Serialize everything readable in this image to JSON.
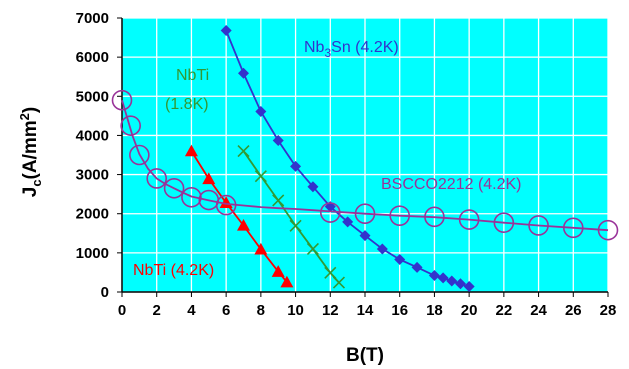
{
  "chart_data": {
    "type": "line",
    "xlabel": "B(T)",
    "ylabel": {
      "main": "J",
      "sub": "c",
      "unit_pre": "(A/mm",
      "unit_sup": "2",
      "unit_post": ")"
    },
    "xlim": [
      0,
      28
    ],
    "ylim": [
      0,
      7000
    ],
    "x_ticks": [
      0,
      2,
      4,
      6,
      8,
      10,
      12,
      14,
      16,
      18,
      20,
      22,
      24,
      26,
      28
    ],
    "y_ticks": [
      0,
      1000,
      2000,
      3000,
      4000,
      5000,
      6000,
      7000
    ],
    "grid": true,
    "plot_background": "#00ffff",
    "grid_color": "#ffffff",
    "series": [
      {
        "name": "Nb3Sn (4.2K)",
        "label_parts": {
          "pre": "Nb",
          "sub": "3",
          "post": "Sn (4.2K)"
        },
        "color": "#3333cc",
        "marker": "diamond",
        "x": [
          6,
          7,
          8,
          9,
          10,
          11,
          12,
          13,
          14,
          15,
          16,
          17,
          18,
          18.5,
          19,
          19.5,
          20
        ],
        "y": [
          6680,
          5590,
          4610,
          3870,
          3210,
          2690,
          2180,
          1790,
          1440,
          1100,
          830,
          630,
          420,
          360,
          280,
          210,
          140
        ]
      },
      {
        "name": "NbTi (1.8K)",
        "label_parts": {
          "line1": "NbTi",
          "line2": "(1.8K)"
        },
        "color": "#339933",
        "marker": "x",
        "x": [
          7,
          8,
          9,
          10,
          11,
          12,
          12.5
        ],
        "y": [
          3600,
          2960,
          2340,
          1690,
          1100,
          490,
          240
        ]
      },
      {
        "name": "NbTi (4.2K)",
        "color": "#ff0000",
        "marker": "triangle",
        "x": [
          4,
          5,
          6,
          7,
          8,
          9,
          9.5
        ],
        "y": [
          3600,
          2890,
          2280,
          1700,
          1090,
          520,
          250
        ]
      },
      {
        "name": "BSCCO2212 (4.2K)",
        "color": "#993399",
        "marker": "circle",
        "x": [
          0,
          0.5,
          1,
          2,
          3,
          4,
          5,
          6,
          12,
          14,
          16,
          18,
          20,
          22,
          24,
          26,
          28
        ],
        "y": [
          4900,
          4250,
          3500,
          2900,
          2650,
          2420,
          2350,
          2220,
          2030,
          2000,
          1950,
          1920,
          1850,
          1770,
          1700,
          1640,
          1580
        ],
        "curve": {
          "x": [
            0,
            0.3,
            0.6,
            1,
            1.5,
            2,
            2.5,
            3,
            3.5,
            4,
            5,
            6,
            7,
            8,
            9,
            10,
            11,
            12,
            14,
            16,
            18,
            20,
            22,
            24,
            26,
            28
          ],
          "y": [
            4900,
            4450,
            4000,
            3520,
            3150,
            2900,
            2760,
            2650,
            2540,
            2440,
            2340,
            2250,
            2210,
            2170,
            2140,
            2120,
            2090,
            2060,
            2000,
            1950,
            1910,
            1850,
            1770,
            1700,
            1640,
            1580
          ]
        }
      }
    ]
  }
}
